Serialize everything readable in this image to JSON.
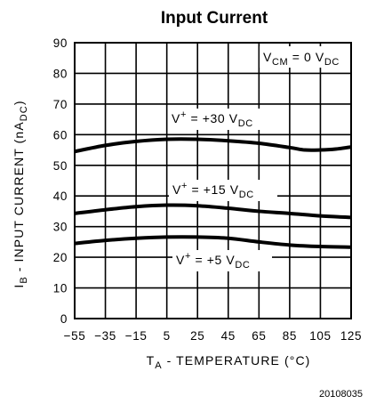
{
  "chart_data": {
    "type": "line",
    "title": "Input Current",
    "xlabel": {
      "main": "T",
      "sub": "A",
      "rest": " - TEMPERATURE (°C)"
    },
    "ylabel": {
      "main": "I",
      "sub": "B",
      "mid": " - INPUT CURRENT (nA",
      "sub2": "DC",
      "end": ")"
    },
    "xlim": [
      -55,
      125
    ],
    "ylim": [
      0,
      90
    ],
    "x_ticks": [
      -55,
      -35,
      -15,
      5,
      25,
      45,
      65,
      85,
      105,
      125
    ],
    "y_ticks": [
      0,
      10,
      20,
      30,
      40,
      50,
      60,
      70,
      80,
      90
    ],
    "grid": true,
    "series": [
      {
        "label": {
          "pre": "V",
          "sup": "+",
          "rest": " = +30 V",
          "sub": "DC"
        },
        "x": [
          -55,
          -35,
          -15,
          5,
          25,
          45,
          65,
          85,
          95,
          105,
          115,
          125
        ],
        "y": [
          54.5,
          56.5,
          57.8,
          58.5,
          58.5,
          58.0,
          57.2,
          55.8,
          55.0,
          55.0,
          55.3,
          56.0
        ]
      },
      {
        "label": {
          "pre": "V",
          "sup": "+",
          "rest": " = +15 V",
          "sub": "DC"
        },
        "x": [
          -55,
          -35,
          -15,
          5,
          25,
          45,
          65,
          85,
          105,
          125
        ],
        "y": [
          34.3,
          35.5,
          36.5,
          37.0,
          36.8,
          36.0,
          35.0,
          34.3,
          33.5,
          33.0
        ]
      },
      {
        "label": {
          "pre": "V",
          "sup": "+",
          "rest": " = +5 V",
          "sub": "DC"
        },
        "x": [
          -55,
          -35,
          -15,
          5,
          25,
          45,
          65,
          85,
          105,
          125
        ],
        "y": [
          24.5,
          25.5,
          26.2,
          26.6,
          26.6,
          26.2,
          25.0,
          24.0,
          23.5,
          23.3
        ]
      }
    ],
    "condition": {
      "pre": "V",
      "sub": "CM",
      "rest": " = 0 V",
      "sub2": "DC"
    },
    "figure_id": "20108035"
  }
}
